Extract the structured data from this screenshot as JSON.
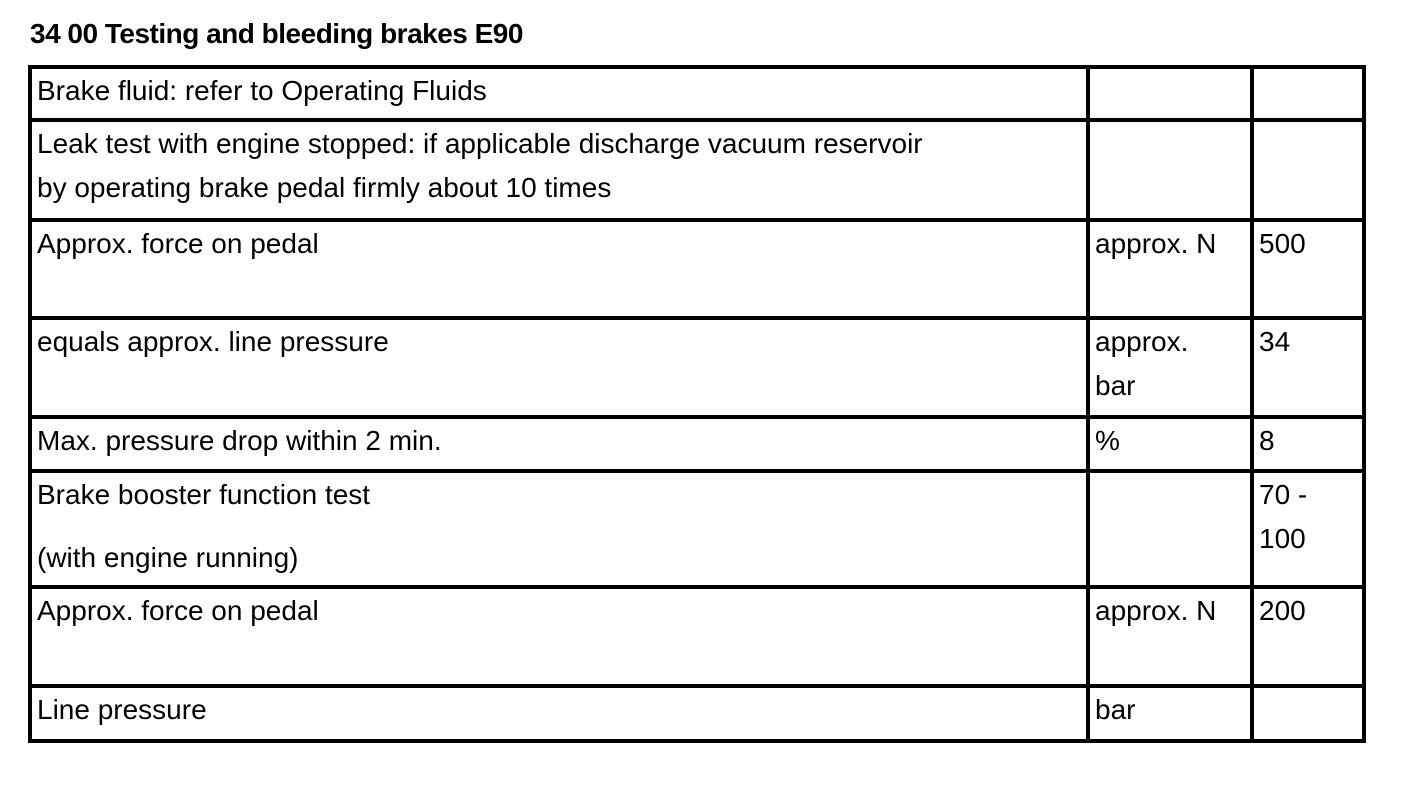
{
  "title": "34 00 Testing and bleeding brakes E90",
  "rows": [
    {
      "description": "Brake fluid: refer to Operating Fluids",
      "unit": "",
      "value": ""
    },
    {
      "description": "Leak test with engine stopped: if applicable discharge vacuum reservoir by operating brake pedal firmly about 10 times",
      "unit": "",
      "value": ""
    },
    {
      "description": "Approx. force on pedal",
      "unit": "approx. N",
      "value": "500"
    },
    {
      "description": "equals approx. line pressure",
      "unit": "approx. bar",
      "value": "34"
    },
    {
      "description": "Max. pressure drop within 2 min.",
      "unit": "%",
      "value": "8"
    },
    {
      "description": "Brake booster function test",
      "description_note": "(with engine running)",
      "unit": "",
      "value": "70 - 100"
    },
    {
      "description": "Approx. force on pedal",
      "unit": "approx. N",
      "value": "200"
    },
    {
      "description": "Line pressure",
      "unit": "bar",
      "value": ""
    }
  ]
}
